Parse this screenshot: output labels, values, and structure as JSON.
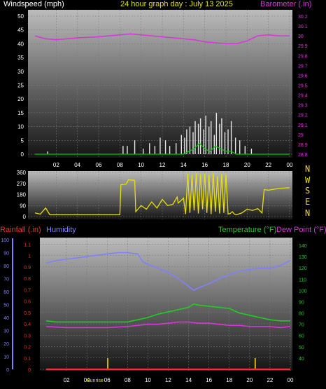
{
  "header": {
    "left_label": "Windspeed (mph)",
    "title": "24 hour graph day : July 13 2025",
    "right_label": "Barometer (.in)"
  },
  "colors": {
    "wind": "#e6e6e6",
    "gust": "#00cc00",
    "barometer": "#dd33dd",
    "direction": "#e8e000",
    "rain": "#ff2a2a",
    "humidity": "#8080ff",
    "temperature": "#22cc22",
    "dewpoint": "#dd33dd",
    "sun_marker": "#d4b000",
    "header_title": "#e0e000"
  },
  "x_ticks": [
    "02",
    "04",
    "06",
    "08",
    "10",
    "12",
    "14",
    "16",
    "18",
    "20",
    "22",
    "00"
  ],
  "compass": [
    "N",
    "W",
    "S",
    "E",
    "N"
  ],
  "lower_labels": {
    "rain": "Rainfall (.in)",
    "humidity": "Humidity",
    "temperature": "Temperature (°F)",
    "dewpoint": "Dew Point (°F)",
    "sunrise": "Sunrise"
  },
  "chart_data": [
    {
      "type": "line",
      "name": "wind_barometer",
      "x_range": [
        0,
        24
      ],
      "y_left": {
        "label": "Windspeed (mph)",
        "range": [
          0,
          50
        ],
        "ticks": [
          0,
          5,
          10,
          15,
          20,
          25,
          30,
          35,
          40,
          45,
          50
        ]
      },
      "y_right": {
        "label": "Barometer (.in)",
        "range": [
          28.8,
          30.2
        ],
        "ticks": [
          "28.8",
          "28.9",
          "29",
          "29.1",
          "29.2",
          "29.3",
          "29.4",
          "29.5",
          "29.6",
          "29.7",
          "29.8",
          "29.9",
          "30",
          "30.1",
          "30.2"
        ]
      },
      "series": [
        {
          "name": "Barometer",
          "axis": "right",
          "x": [
            0,
            1,
            2,
            4,
            6,
            8,
            9,
            10,
            11,
            12,
            13,
            14,
            15,
            16,
            17,
            18,
            19,
            20,
            21,
            22,
            23,
            24
          ],
          "y": [
            30.0,
            29.97,
            29.96,
            29.98,
            29.99,
            30.01,
            30.02,
            30.01,
            30.0,
            29.99,
            29.98,
            29.97,
            29.96,
            29.94,
            29.93,
            29.92,
            29.92,
            29.95,
            30.0,
            30.01,
            30.0,
            30.0
          ]
        },
        {
          "name": "Windspeed",
          "axis": "left",
          "style": "bars",
          "x": [
            1.2,
            8.3,
            8.7,
            9.4,
            10.2,
            10.8,
            11.3,
            11.8,
            12.3,
            12.7,
            13.3,
            13.8,
            14.1,
            14.3,
            14.6,
            14.9,
            15.1,
            15.4,
            15.6,
            15.9,
            16.1,
            16.4,
            16.6,
            16.9,
            17.1,
            17.4,
            17.6,
            17.9,
            18.2,
            18.5,
            18.9,
            19.3,
            19.8,
            20.4
          ],
          "y": [
            1,
            3,
            3,
            5,
            2,
            4,
            3,
            6,
            5,
            3,
            4,
            7,
            6,
            9,
            10,
            8,
            12,
            11,
            13,
            9,
            14,
            10,
            12,
            7,
            15,
            11,
            13,
            8,
            9,
            12,
            6,
            5,
            3,
            2
          ]
        },
        {
          "name": "Gust",
          "axis": "left",
          "x": [
            0,
            13,
            14,
            14.5,
            15,
            15.5,
            16,
            16.5,
            17,
            17.5,
            18,
            18.5,
            19,
            24
          ],
          "y": [
            0,
            0,
            0,
            1,
            2,
            4,
            2,
            1,
            3,
            2,
            1,
            1,
            0,
            0
          ]
        }
      ]
    },
    {
      "type": "line",
      "name": "wind_direction",
      "x_range": [
        0,
        24
      ],
      "y_range": [
        0,
        360
      ],
      "y_ticks": [
        0,
        90,
        180,
        270,
        360
      ],
      "series": [
        {
          "name": "Direction",
          "x": [
            0,
            0.5,
            1.0,
            1.4,
            2,
            4,
            6,
            8.0,
            8.1,
            8.6,
            8.8,
            9.4,
            9.5,
            10,
            10.5,
            11,
            11.5,
            12,
            12.5,
            13,
            13.4,
            13.5,
            14.0,
            14.2,
            14.4,
            14.6,
            14.8,
            15.0,
            15.2,
            15.4,
            15.6,
            15.8,
            16.0,
            16.2,
            16.4,
            16.6,
            16.8,
            17.0,
            17.2,
            17.4,
            17.6,
            17.8,
            18.0,
            18.2,
            18.4,
            18.6,
            18.8,
            19.0,
            19.5,
            20,
            20.5,
            21,
            21.4,
            21.6,
            22,
            23,
            24
          ],
          "y": [
            30,
            20,
            70,
            15,
            15,
            15,
            15,
            15,
            260,
            265,
            300,
            295,
            40,
            90,
            60,
            120,
            70,
            140,
            90,
            100,
            160,
            110,
            150,
            20,
            350,
            30,
            340,
            50,
            355,
            25,
            345,
            60,
            350,
            30,
            340,
            20,
            355,
            40,
            330,
            25,
            350,
            30,
            345,
            20,
            25,
            40,
            20,
            15,
            30,
            60,
            50,
            65,
            30,
            220,
            215,
            230,
            235
          ]
        }
      ]
    },
    {
      "type": "line",
      "name": "rain_humidity_temperature",
      "x_range": [
        0,
        24
      ],
      "y_rain": {
        "label": "Rainfall (.in)",
        "range": [
          0,
          1.2
        ],
        "ticks": [
          "0",
          "0.1",
          "0.2",
          "0.3",
          "0.4",
          "0.5",
          "0.6",
          "0.7",
          "0.8",
          "0.9",
          "1",
          "1.1"
        ]
      },
      "y_humidity": {
        "label": "Humidity",
        "range": [
          0,
          100
        ],
        "ticks": [
          0,
          10,
          20,
          30,
          40,
          50,
          60,
          70,
          80,
          90,
          100
        ]
      },
      "y_temperature": {
        "label": "Temperature (°F)",
        "range": [
          30,
          145
        ],
        "ticks": [
          40,
          50,
          60,
          70,
          80,
          90,
          100,
          110,
          120,
          130,
          140
        ]
      },
      "series": [
        {
          "name": "Humidity",
          "axis": "humidity",
          "x": [
            0,
            1,
            2,
            3,
            4,
            5,
            6,
            7,
            8,
            9,
            9.5,
            10,
            11,
            12,
            13,
            14,
            14.5,
            15,
            16,
            17,
            18,
            19,
            20,
            21,
            22,
            23,
            24
          ],
          "y": [
            82,
            84,
            85,
            86,
            87,
            88,
            89,
            90,
            90,
            89,
            83,
            81,
            78,
            75,
            70,
            64,
            61,
            63,
            66,
            70,
            73,
            76,
            77,
            78,
            78,
            80,
            84
          ]
        },
        {
          "name": "Temperature",
          "axis": "temperature",
          "x": [
            0,
            1,
            2,
            4,
            6,
            8,
            9,
            10,
            11,
            12,
            13,
            14,
            14.5,
            15,
            16,
            17,
            18,
            19,
            20,
            21,
            22,
            23,
            24
          ],
          "y": [
            73,
            72,
            72,
            72,
            72,
            72,
            74,
            76,
            79,
            81,
            83,
            85,
            88,
            87,
            86,
            85,
            84,
            80,
            78,
            76,
            74,
            73,
            73
          ]
        },
        {
          "name": "Dew Point",
          "axis": "temperature",
          "x": [
            0,
            2,
            4,
            6,
            8,
            9,
            10,
            11,
            12,
            13,
            14,
            15,
            16,
            17,
            18,
            19,
            20,
            21,
            22,
            23,
            24
          ],
          "y": [
            68,
            67,
            67,
            67,
            68,
            69,
            70,
            70,
            71,
            72,
            72,
            71,
            71,
            70,
            69,
            69,
            68,
            68,
            68,
            67,
            68
          ]
        },
        {
          "name": "Rainfall",
          "axis": "rain",
          "x": [
            0,
            24
          ],
          "y": [
            0,
            0
          ]
        }
      ],
      "markers": [
        {
          "label": "Sunrise",
          "x": 6.05
        },
        {
          "label": "",
          "x": 20.55
        }
      ]
    }
  ]
}
